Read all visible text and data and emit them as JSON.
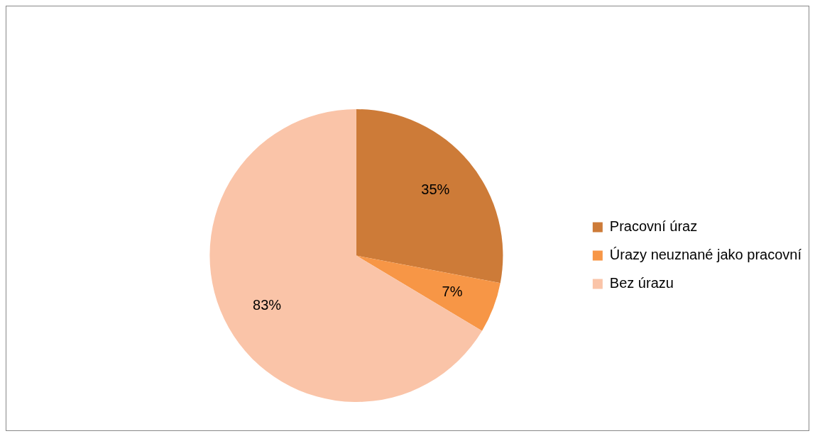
{
  "chart_data": {
    "type": "pie",
    "categories": [
      "Pracovní úraz",
      "Úrazy neuznané jako pracovní",
      "Bez úrazu"
    ],
    "values": [
      35,
      7,
      83
    ],
    "colors": [
      "#cd7b38",
      "#f79646",
      "#fac4a8"
    ],
    "value_labels": [
      "35%",
      "7%",
      "83%"
    ],
    "legend": "right"
  }
}
